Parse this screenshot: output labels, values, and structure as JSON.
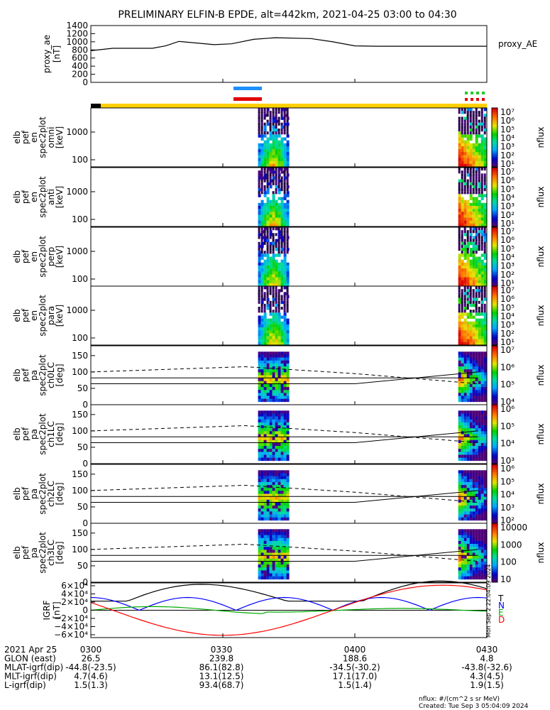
{
  "title": "PRELIMINARY ELFIN-B EPDE, alt=442km, 2021-04-25 03:00 to 04:30",
  "chart_data": [
    {
      "type": "line",
      "ylabel": [
        "proxy_ae",
        "[nT]"
      ],
      "ylim": [
        0,
        1400
      ],
      "yticks": [
        "1400",
        "1200",
        "1000",
        "800",
        "600",
        "400",
        "200",
        "0"
      ],
      "legend": "proxy_AE",
      "series": [
        {
          "name": "proxy_AE",
          "x": [
            0,
            5,
            10,
            14,
            17,
            20,
            25,
            28,
            32,
            37,
            42,
            50,
            55,
            60,
            65,
            70,
            75,
            80,
            85,
            90
          ],
          "y": [
            780,
            840,
            840,
            840,
            900,
            1010,
            960,
            930,
            950,
            1060,
            1100,
            1080,
            1000,
            900,
            890,
            890,
            890,
            890,
            890,
            890
          ]
        }
      ]
    },
    {
      "type": "heatmap",
      "ylabel": [
        "elb",
        "pef",
        "en",
        "spec2plot",
        "omni",
        "[keV]"
      ],
      "yticks": [
        "1000",
        "100"
      ],
      "colorbar_ticks": [
        "10⁷",
        "10⁶",
        "10⁵",
        "10⁴",
        "10³",
        "10²",
        "10¹"
      ],
      "colorbar_label": "nflux"
    },
    {
      "type": "heatmap",
      "ylabel": [
        "elb",
        "pef",
        "en",
        "spec2plot",
        "anti",
        "[keV]"
      ],
      "yticks": [
        "1000",
        "100"
      ],
      "colorbar_ticks": [
        "10⁷",
        "10⁶",
        "10⁵",
        "10⁴",
        "10³",
        "10²",
        "10¹"
      ],
      "colorbar_label": "nflux"
    },
    {
      "type": "heatmap",
      "ylabel": [
        "elb",
        "pef",
        "en",
        "spec2plot",
        "perp",
        "[keV]"
      ],
      "yticks": [
        "1000",
        "100"
      ],
      "colorbar_ticks": [
        "10⁷",
        "10⁶",
        "10⁵",
        "10⁴",
        "10³",
        "10²",
        "10¹"
      ],
      "colorbar_label": "nflux"
    },
    {
      "type": "heatmap",
      "ylabel": [
        "elb",
        "pef",
        "en",
        "spec2plot",
        "para",
        "[keV]"
      ],
      "yticks": [
        "1000",
        "100"
      ],
      "colorbar_ticks": [
        "10⁷",
        "10⁶",
        "10⁵",
        "10⁴",
        "10³",
        "10²",
        "10¹"
      ],
      "colorbar_label": "nflux"
    },
    {
      "type": "heatmap",
      "ylabel": [
        "elb",
        "pef",
        "pa",
        "spec2plot",
        "ch0LC",
        "[deg]"
      ],
      "yticks": [
        "150",
        "100",
        "50",
        "0"
      ],
      "colorbar_ticks": [
        "10⁷",
        "10⁶",
        "10⁵",
        "10⁴"
      ],
      "colorbar_label": "nflux"
    },
    {
      "type": "heatmap",
      "ylabel": [
        "elb",
        "pef",
        "pa",
        "spec2plot",
        "ch1LC",
        "[deg]"
      ],
      "yticks": [
        "150",
        "100",
        "50",
        "0"
      ],
      "colorbar_ticks": [
        "10⁶",
        "10⁵",
        "10⁴",
        "10³"
      ],
      "colorbar_label": "nflux"
    },
    {
      "type": "heatmap",
      "ylabel": [
        "elb",
        "pef",
        "pa",
        "spec2plot",
        "ch2LC",
        "[deg]"
      ],
      "yticks": [
        "150",
        "100",
        "50",
        "0"
      ],
      "colorbar_ticks": [
        "10⁶",
        "10⁵",
        "10⁴",
        "10³",
        "10²"
      ],
      "colorbar_label": "nflux"
    },
    {
      "type": "heatmap",
      "ylabel": [
        "elb",
        "pef",
        "pa",
        "spec2plot",
        "ch3LC",
        "[deg]"
      ],
      "yticks": [
        "150",
        "100",
        "50",
        "0"
      ],
      "colorbar_ticks": [
        "10000",
        "1000",
        "100",
        "10"
      ],
      "colorbar_label": "nflux"
    },
    {
      "type": "line",
      "ylabel": [
        "IGRF",
        "[nT]"
      ],
      "ylim": [
        -60000,
        60000
      ],
      "yticks": [
        "6×10⁴",
        "4×10⁴",
        "2×10⁴",
        "0",
        "−2×10⁴",
        "−4×10⁴",
        "−6×10⁴"
      ],
      "legend_entries": [
        "T",
        "N",
        "E",
        "D"
      ],
      "colors": {
        "T": "#000000",
        "N": "#0000ff",
        "E": "#00aa00",
        "D": "#ff0000"
      }
    }
  ],
  "x_axis": {
    "ticks": [
      "0300",
      "0330",
      "0400",
      "0430"
    ],
    "rows": [
      {
        "label": "2021 Apr 25",
        "values": [
          "0300",
          "0330",
          "0400",
          "0430"
        ]
      },
      {
        "label": "GLON (east)",
        "values": [
          "26.5",
          "239.8",
          "188.6",
          "4.8"
        ]
      },
      {
        "label": "MLAT-igrf(dip)",
        "values": [
          "-44.8(-23.5)",
          "86.1(82.8)",
          "-34.5(-30.2)",
          "-43.8(-32.6)"
        ]
      },
      {
        "label": "MLT-igrf(dip)",
        "values": [
          "4.7(4.6)",
          "13.1(12.5)",
          "17.1(17.0)",
          "4.3(4.5)"
        ]
      },
      {
        "label": "L-igrf(dip)",
        "values": [
          "1.5(1.3)",
          "93.4(68.7)",
          "1.5(1.4)",
          "1.9(1.5)"
        ]
      }
    ]
  },
  "footer": {
    "units": "nflux: #/(cm^2 s sr MeV)",
    "created": "Created: Tue Sep  3 05:04:09 2024",
    "side_stamp": "Mon Sep  2 22:04:09 2024"
  }
}
